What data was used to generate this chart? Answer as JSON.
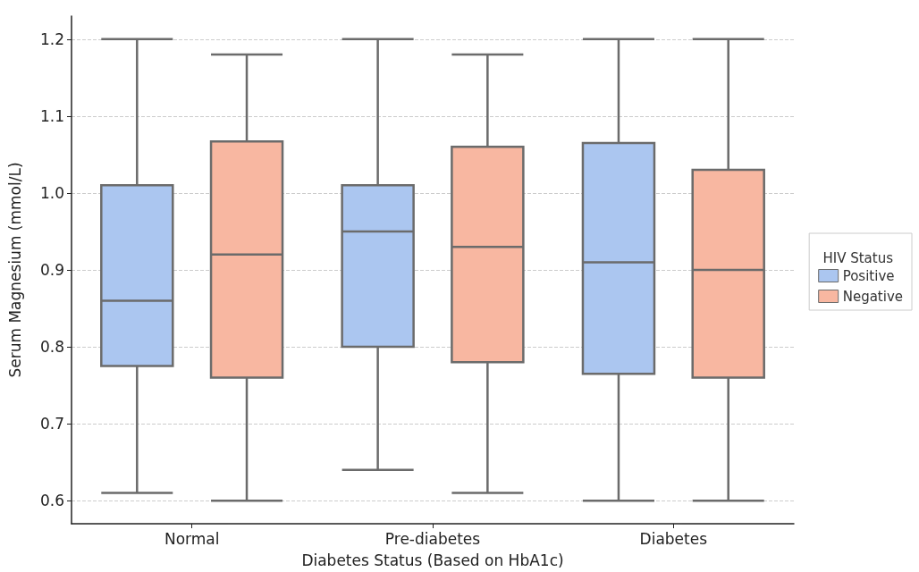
{
  "chart_data": {
    "type": "box",
    "xlabel": "Diabetes Status (Based on HbA1c)",
    "ylabel": "Serum Magnesium (mmol/L)",
    "legend_title": "HIV Status",
    "categories": [
      "Normal",
      "Pre-diabetes",
      "Diabetes"
    ],
    "series": [
      {
        "name": "Positive",
        "color": "#abc6f0",
        "boxes": [
          {
            "low": 0.61,
            "q1": 0.775,
            "median": 0.86,
            "q3": 1.01,
            "high": 1.2
          },
          {
            "low": 0.64,
            "q1": 0.8,
            "median": 0.95,
            "q3": 1.01,
            "high": 1.2
          },
          {
            "low": 0.6,
            "q1": 0.765,
            "median": 0.91,
            "q3": 1.065,
            "high": 1.2
          }
        ]
      },
      {
        "name": "Negative",
        "color": "#f8b7a1",
        "boxes": [
          {
            "low": 0.6,
            "q1": 0.76,
            "median": 0.92,
            "q3": 1.067,
            "high": 1.18
          },
          {
            "low": 0.61,
            "q1": 0.78,
            "median": 0.93,
            "q3": 1.06,
            "high": 1.18
          },
          {
            "low": 0.6,
            "q1": 0.76,
            "median": 0.9,
            "q3": 1.03,
            "high": 1.2
          }
        ]
      }
    ],
    "ylim": [
      0.57,
      1.23
    ],
    "yticks": [
      {
        "value": 0.6,
        "label": "0.6"
      },
      {
        "value": 0.7,
        "label": "0.7"
      },
      {
        "value": 0.8,
        "label": "0.8"
      },
      {
        "value": 0.9,
        "label": "0.9"
      },
      {
        "value": 1,
        "label": "1.0"
      },
      {
        "value": 1.1,
        "label": "1.1"
      },
      {
        "value": 1.2,
        "label": "1.2"
      }
    ],
    "grid": "y",
    "legend": "right"
  }
}
